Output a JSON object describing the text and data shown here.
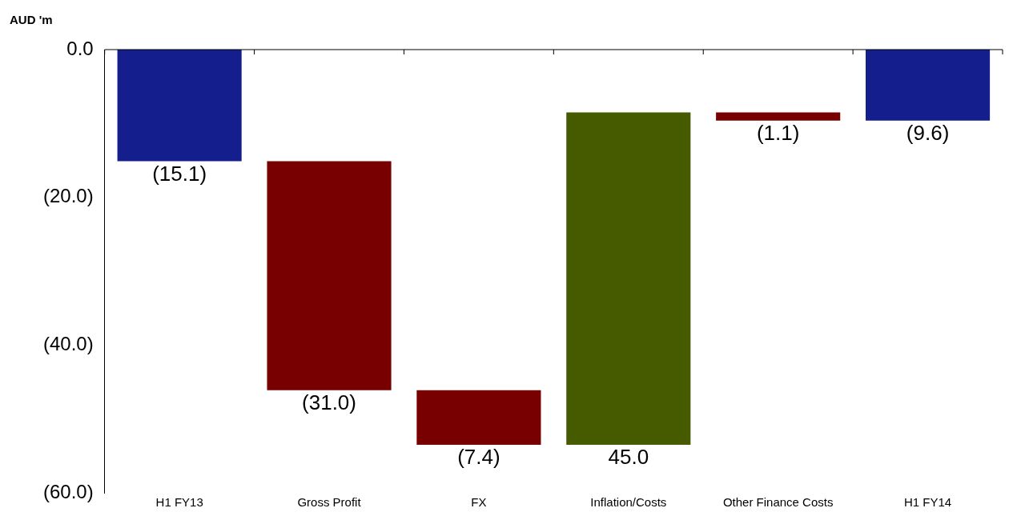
{
  "chart_data": {
    "type": "bar",
    "ylabel": "AUD 'm",
    "categories": [
      "H1 FY13",
      "Gross Profit",
      "FX",
      "Inflation/Costs",
      "Other Finance Costs",
      "H1 FY14"
    ],
    "values": [
      -15.1,
      -31.0,
      -7.4,
      45.0,
      -1.1,
      -9.6
    ],
    "base": [
      0,
      -15.1,
      -46.1,
      -53.5,
      -8.5,
      0
    ],
    "colors": [
      "#141e8c",
      "#780000",
      "#780000",
      "#465a00",
      "#780000",
      "#141e8c"
    ],
    "value_labels": [
      "(15.1)",
      "(31.0)",
      "(7.4)",
      "45.0",
      "(1.1)",
      "(9.6)"
    ],
    "ylim": [
      -60,
      0
    ],
    "yticks": [
      {
        "value": 0,
        "label": "0.0"
      },
      {
        "value": -20,
        "label": "(20.0)"
      },
      {
        "value": -40,
        "label": "(40.0)"
      },
      {
        "value": -60,
        "label": "(60.0)"
      }
    ],
    "grid": false,
    "legend": false
  }
}
